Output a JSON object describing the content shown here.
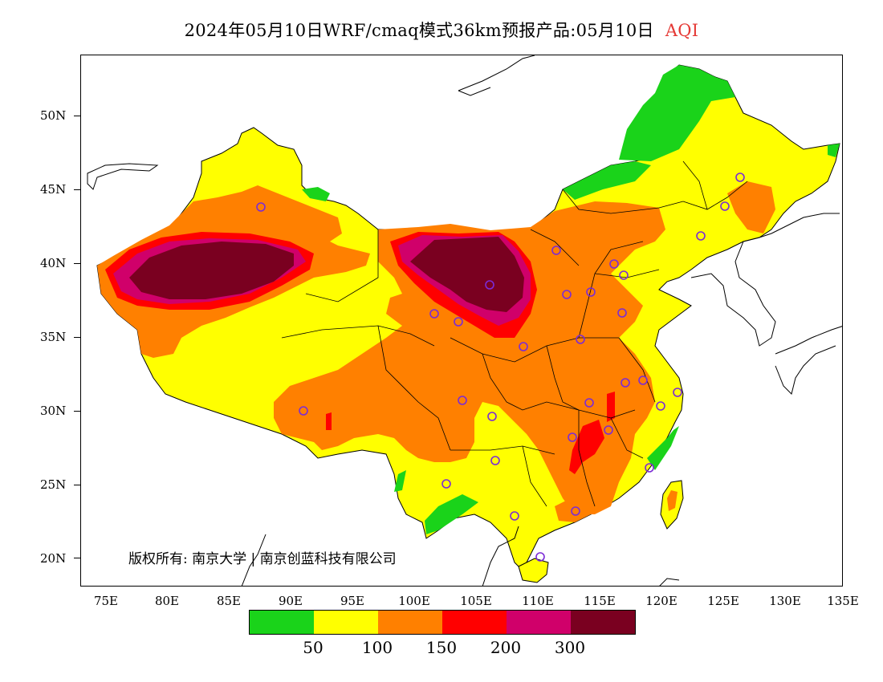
{
  "title": {
    "text": "2024年05月10日WRF/cmaq模式36km预报产品:05月10日",
    "variable": "AQI"
  },
  "copyright": "版权所有: 南京大学 | 南京创蓝科技有限公司",
  "axes": {
    "lat_labels": [
      "50N",
      "45N",
      "40N",
      "35N",
      "30N",
      "25N",
      "20N"
    ],
    "lon_labels": [
      "75E",
      "80E",
      "85E",
      "90E",
      "95E",
      "100E",
      "105E",
      "110E",
      "115E",
      "120E",
      "125E",
      "130E",
      "135E"
    ]
  },
  "legend": {
    "colors": [
      "#1ad31a",
      "#ffff00",
      "#ff8000",
      "#ff0000",
      "#d0006a",
      "#7a0020"
    ],
    "labels": [
      "50",
      "100",
      "150",
      "200",
      "300"
    ]
  },
  "colors": {
    "good": "#1ad31a",
    "moderate": "#ffff00",
    "sensitive": "#ff8000",
    "unhealthy": "#ff0000",
    "very_unhealthy": "#d0006a",
    "hazardous": "#7a0020",
    "station_marker": "#7b2bd6"
  },
  "icons": {
    "station": "circle-marker"
  }
}
